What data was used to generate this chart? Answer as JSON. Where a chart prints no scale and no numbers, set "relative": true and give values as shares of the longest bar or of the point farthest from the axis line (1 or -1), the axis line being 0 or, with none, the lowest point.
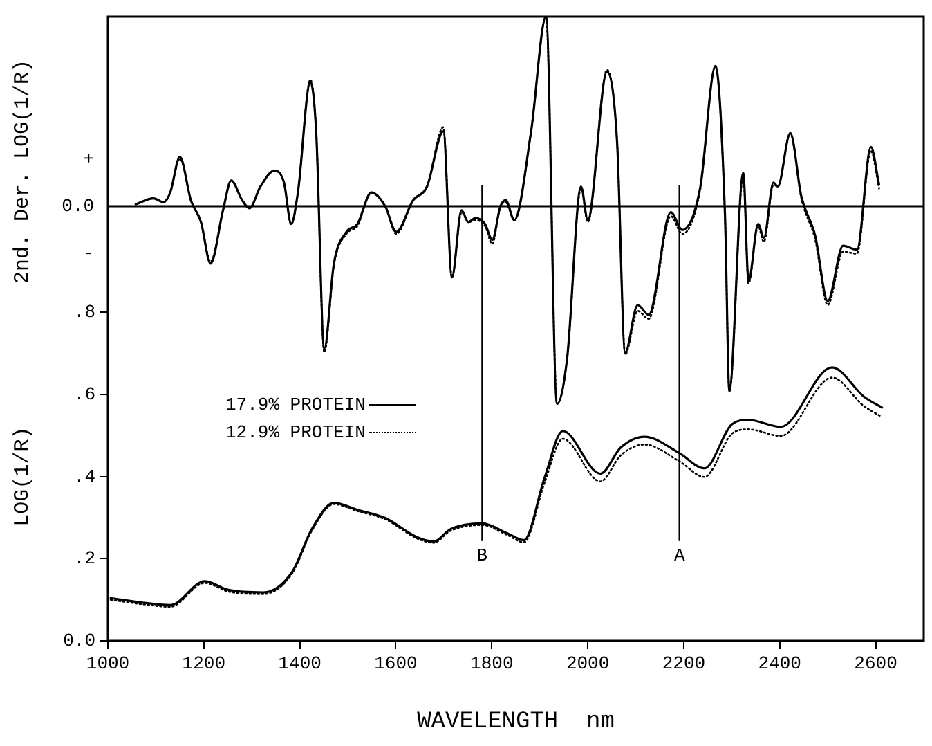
{
  "chart_data": [
    {
      "type": "line",
      "relative": true,
      "ylabel": "2nd. Der. LOG(1/R)",
      "xlim": [
        1000,
        2700
      ],
      "annotations": [
        "+",
        "0.0",
        "-"
      ],
      "marker": "none",
      "series": [
        {
          "color": "#000000",
          "line_style": "solid",
          "x": [
            1058,
            1095,
            1116,
            1130,
            1150,
            1173,
            1194,
            1214,
            1240,
            1257,
            1280,
            1295,
            1318,
            1347,
            1367,
            1382,
            1396,
            1422,
            1434,
            1451,
            1471,
            1497,
            1520,
            1549,
            1578,
            1601,
            1636,
            1665,
            1699,
            1717,
            1737,
            1751,
            1766,
            1786,
            1801,
            1818,
            1829,
            1847,
            1882,
            1913,
            1936,
            1957,
            1986,
            2000,
            2040,
            2061,
            2078,
            2104,
            2127,
            2173,
            2197,
            2234,
            2266,
            2286,
            2295,
            2324,
            2335,
            2355,
            2367,
            2387,
            2396,
            2422,
            2445,
            2474,
            2500,
            2532,
            2561,
            2590,
            2607
          ],
          "values": [
            0.01,
            0.04,
            0.02,
            0.07,
            0.25,
            0.03,
            -0.08,
            -0.29,
            -0.02,
            0.13,
            0.03,
            -0.01,
            0.1,
            0.18,
            0.12,
            -0.09,
            0.07,
            0.63,
            0.38,
            -0.72,
            -0.29,
            -0.13,
            -0.09,
            0.07,
            0,
            -0.13,
            0.03,
            0.1,
            0.38,
            -0.36,
            -0.02,
            -0.08,
            -0.06,
            -0.09,
            -0.17,
            0,
            0.03,
            -0.07,
            0.38,
            0.96,
            -1,
            -0.77,
            0.1,
            -0.07,
            0.68,
            0.33,
            -0.74,
            -0.5,
            -0.55,
            -0.03,
            -0.12,
            0.09,
            0.71,
            -0.05,
            -0.93,
            0.17,
            -0.38,
            -0.09,
            -0.16,
            0.12,
            0.1,
            0.37,
            0.05,
            -0.15,
            -0.48,
            -0.2,
            -0.22,
            0.3,
            0.11
          ]
        },
        {
          "color": "#000000",
          "line_style": "dotted",
          "x": [
            1058,
            1095,
            1116,
            1130,
            1150,
            1173,
            1194,
            1214,
            1240,
            1257,
            1280,
            1295,
            1318,
            1347,
            1367,
            1382,
            1396,
            1422,
            1434,
            1451,
            1471,
            1497,
            1520,
            1549,
            1578,
            1601,
            1636,
            1665,
            1699,
            1717,
            1737,
            1751,
            1766,
            1786,
            1801,
            1818,
            1829,
            1847,
            1882,
            1913,
            1936,
            1957,
            1986,
            2000,
            2040,
            2061,
            2078,
            2104,
            2127,
            2173,
            2197,
            2234,
            2266,
            2286,
            2295,
            2324,
            2335,
            2355,
            2367,
            2387,
            2396,
            2422,
            2445,
            2474,
            2500,
            2532,
            2561,
            2590,
            2607
          ],
          "values": [
            0.01,
            0.04,
            0.02,
            0.07,
            0.24,
            0.03,
            -0.08,
            -0.28,
            -0.02,
            0.13,
            0.03,
            -0.01,
            0.1,
            0.18,
            0.12,
            -0.09,
            0.07,
            0.64,
            0.38,
            -0.74,
            -0.3,
            -0.14,
            -0.1,
            0.07,
            0,
            -0.14,
            0.03,
            0.1,
            0.4,
            -0.36,
            -0.03,
            -0.08,
            -0.07,
            -0.1,
            -0.19,
            0,
            0.02,
            -0.07,
            0.38,
            0.96,
            -1,
            -0.77,
            0.09,
            -0.08,
            0.69,
            0.33,
            -0.75,
            -0.53,
            -0.57,
            -0.05,
            -0.14,
            0.08,
            0.71,
            -0.06,
            -0.94,
            0.16,
            -0.39,
            -0.1,
            -0.18,
            0.11,
            0.1,
            0.37,
            0.04,
            -0.17,
            -0.5,
            -0.23,
            -0.24,
            0.28,
            0.09
          ]
        }
      ]
    },
    {
      "type": "line",
      "xlabel": "WAVELENGTH  nm",
      "ylabel": "LOG(1/R)",
      "xlim": [
        1000,
        2700
      ],
      "xticks": [
        1000,
        1200,
        1400,
        1600,
        1800,
        2000,
        2200,
        2400,
        2600
      ],
      "ylim": [
        0,
        1.52
      ],
      "yticks": [
        {
          "value": 0,
          "label": "0.0"
        },
        {
          "value": 0.2,
          "label": ".2"
        },
        {
          "value": 0.4,
          "label": ".4"
        },
        {
          "value": 0.6,
          "label": ".6"
        },
        {
          "value": 0.8,
          "label": ".8"
        }
      ],
      "marker": "none",
      "legend": "left",
      "ref_lines": [
        {
          "axis": "x",
          "value": 1780,
          "label": "B"
        },
        {
          "axis": "x",
          "value": 2191,
          "label": "A"
        }
      ],
      "series": [
        {
          "name": "17.9% PROTEIN",
          "color": "#000000",
          "line_style": "solid",
          "x": [
            1006,
            1066,
            1130,
            1202,
            1251,
            1324,
            1384,
            1425,
            1471,
            1520,
            1578,
            1645,
            1679,
            1714,
            1780,
            1832,
            1867,
            1910,
            1948,
            2026,
            2069,
            2118,
            2191,
            2243,
            2301,
            2335,
            2402,
            2509,
            2575,
            2613
          ],
          "values": [
            0.104,
            0.094,
            0.087,
            0.145,
            0.124,
            0.118,
            0.168,
            0.272,
            0.336,
            0.319,
            0.299,
            0.252,
            0.242,
            0.272,
            0.286,
            0.262,
            0.245,
            0.397,
            0.511,
            0.407,
            0.471,
            0.497,
            0.457,
            0.42,
            0.528,
            0.538,
            0.521,
            0.666,
            0.595,
            0.568
          ]
        },
        {
          "name": "12.9% PROTEIN",
          "color": "#000000",
          "line_style": "dotted",
          "x": [
            1006,
            1066,
            1130,
            1202,
            1251,
            1324,
            1384,
            1425,
            1471,
            1520,
            1578,
            1645,
            1679,
            1714,
            1780,
            1832,
            1867,
            1910,
            1948,
            2026,
            2069,
            2118,
            2191,
            2243,
            2301,
            2335,
            2402,
            2509,
            2575,
            2613
          ],
          "values": [
            0.1,
            0.09,
            0.083,
            0.141,
            0.12,
            0.114,
            0.164,
            0.268,
            0.333,
            0.316,
            0.296,
            0.249,
            0.239,
            0.268,
            0.282,
            0.258,
            0.24,
            0.385,
            0.492,
            0.388,
            0.452,
            0.478,
            0.437,
            0.399,
            0.505,
            0.515,
            0.499,
            0.641,
            0.572,
            0.545
          ]
        }
      ]
    }
  ]
}
